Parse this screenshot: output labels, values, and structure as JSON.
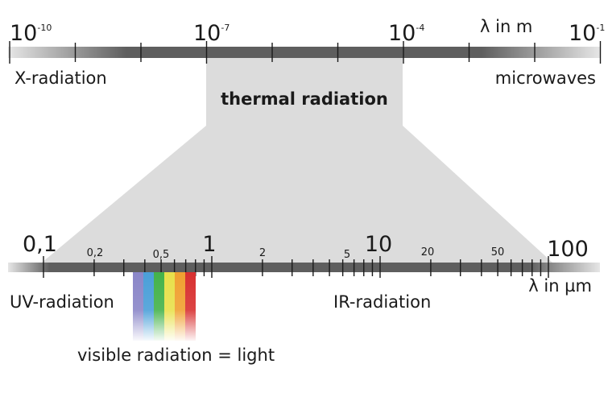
{
  "top_scale": {
    "labels": [
      {
        "base": "10",
        "exp": "-10"
      },
      {
        "base": "10",
        "exp": "-7"
      },
      {
        "base": "10",
        "exp": "-4"
      },
      {
        "base": "10",
        "exp": "-1"
      }
    ],
    "unit": "λ in m",
    "left_region": "X-radiation",
    "right_region": "microwaves"
  },
  "zoom_band": {
    "label": "thermal radiation"
  },
  "bottom_scale": {
    "major_labels": [
      "0,1",
      "1",
      "10",
      "100"
    ],
    "minor_labels": [
      "0,2",
      "0,5",
      "2",
      "5",
      "20",
      "50"
    ],
    "unit": "λ in µm",
    "left_region": "UV-radiation",
    "right_region": "IR-radiation",
    "visible_label": "visible radiation = light",
    "visible_colors": [
      "#8a86c8",
      "#4a9fd8",
      "#44b24a",
      "#e8e04a",
      "#f0a030",
      "#d83030"
    ]
  }
}
